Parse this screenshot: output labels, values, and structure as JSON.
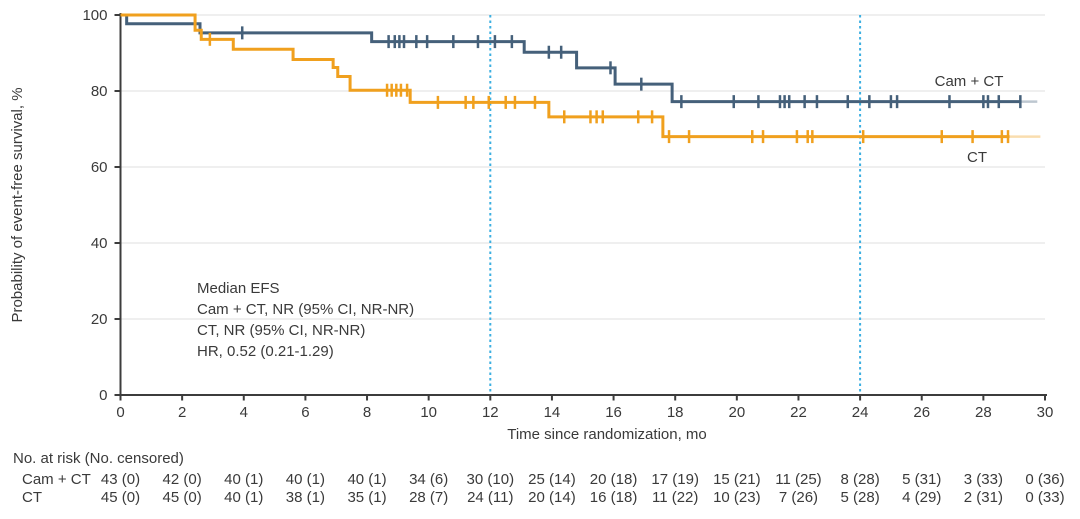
{
  "chart_data": {
    "type": "line",
    "subtype": "kaplan-meier-step",
    "title": "",
    "x_title": "Time since randomization, mo",
    "y_title": "Probability of event-free survival, %",
    "xlim": [
      0,
      30
    ],
    "ylim": [
      0,
      100
    ],
    "x_ticks": [
      0,
      2,
      4,
      6,
      8,
      10,
      12,
      14,
      16,
      18,
      20,
      22,
      24,
      26,
      28,
      30
    ],
    "y_ticks": [
      0,
      20,
      40,
      60,
      80,
      100
    ],
    "gridline_levels": [
      20,
      40,
      60,
      80,
      100
    ],
    "grid_on": true,
    "legend_position": "right-of-curves",
    "reference_lines": {
      "months": [
        12,
        24
      ],
      "color": "#3cafe1",
      "style": "dotted"
    },
    "colors": {
      "cam_ct": "#45607a",
      "ct": "#f0a01e",
      "axis": "#3c3c3c",
      "grid": "#eaeaea",
      "text": "#3a3a3a"
    },
    "series": [
      {
        "name": "Cam + CT",
        "color": "#45607a",
        "steps": [
          [
            0,
            100
          ],
          [
            0.2,
            97.7
          ],
          [
            2.58,
            95.3
          ],
          [
            8.15,
            93.0
          ],
          [
            13.1,
            90.2
          ],
          [
            14.8,
            86.1
          ],
          [
            16.05,
            81.8
          ],
          [
            17.9,
            77.2
          ]
        ],
        "end_month": 29.2,
        "fade_end_month": 29.75,
        "censors": [
          [
            3.95,
            95.3
          ],
          [
            8.7,
            93.0
          ],
          [
            8.9,
            93.0
          ],
          [
            9.05,
            93.0
          ],
          [
            9.2,
            93.0
          ],
          [
            9.6,
            93.0
          ],
          [
            9.95,
            93.0
          ],
          [
            10.8,
            93.0
          ],
          [
            11.6,
            93.0
          ],
          [
            12.15,
            93.0
          ],
          [
            12.7,
            93.0
          ],
          [
            13.9,
            90.2
          ],
          [
            14.3,
            90.2
          ],
          [
            15.9,
            86.1
          ],
          [
            16.9,
            81.8
          ],
          [
            18.2,
            77.2
          ],
          [
            19.9,
            77.2
          ],
          [
            20.7,
            77.2
          ],
          [
            21.4,
            77.2
          ],
          [
            21.55,
            77.2
          ],
          [
            21.7,
            77.2
          ],
          [
            22.2,
            77.2
          ],
          [
            22.6,
            77.2
          ],
          [
            23.6,
            77.2
          ],
          [
            24.3,
            77.2
          ],
          [
            25.0,
            77.2
          ],
          [
            25.2,
            77.2
          ],
          [
            26.9,
            77.2
          ],
          [
            28.0,
            77.2
          ],
          [
            28.15,
            77.2
          ],
          [
            28.5,
            77.2
          ],
          [
            29.2,
            77.2
          ]
        ],
        "label_anchor": {
          "x": 969,
          "y": 86
        }
      },
      {
        "name": "CT",
        "color": "#f0a01e",
        "steps": [
          [
            0,
            100
          ],
          [
            2.42,
            96.0
          ],
          [
            2.62,
            93.6
          ],
          [
            3.66,
            91.0
          ],
          [
            5.6,
            88.3
          ],
          [
            6.9,
            86.2
          ],
          [
            7.05,
            83.8
          ],
          [
            7.45,
            80.2
          ],
          [
            9.4,
            77.0
          ],
          [
            13.9,
            73.2
          ],
          [
            17.6,
            68.0
          ]
        ],
        "end_month": 28.85,
        "fade_end_month": 29.85,
        "censors": [
          [
            2.9,
            93.6
          ],
          [
            8.65,
            80.2
          ],
          [
            8.8,
            80.2
          ],
          [
            8.95,
            80.2
          ],
          [
            9.1,
            80.2
          ],
          [
            9.3,
            80.2
          ],
          [
            10.3,
            77.0
          ],
          [
            11.2,
            77.0
          ],
          [
            11.45,
            77.0
          ],
          [
            11.95,
            77.0
          ],
          [
            12.5,
            77.0
          ],
          [
            12.8,
            77.0
          ],
          [
            13.45,
            77.0
          ],
          [
            14.4,
            73.2
          ],
          [
            15.25,
            73.2
          ],
          [
            15.45,
            73.2
          ],
          [
            15.65,
            73.2
          ],
          [
            16.8,
            73.2
          ],
          [
            17.25,
            73.2
          ],
          [
            17.8,
            68.0
          ],
          [
            18.45,
            68.0
          ],
          [
            20.5,
            68.0
          ],
          [
            20.85,
            68.0
          ],
          [
            21.95,
            68.0
          ],
          [
            22.3,
            68.0
          ],
          [
            22.45,
            68.0
          ],
          [
            24.1,
            68.0
          ],
          [
            26.65,
            68.0
          ],
          [
            27.65,
            68.0
          ],
          [
            28.6,
            68.0
          ],
          [
            28.8,
            68.0
          ]
        ],
        "label_anchor": {
          "x": 977,
          "y": 162
        }
      }
    ],
    "annotation": {
      "lines": [
        "Median EFS",
        "Cam + CT, NR (95% CI, NR-NR)",
        "CT, NR (95% CI, NR-NR)",
        "HR, 0.52 (0.21-1.29)"
      ]
    }
  },
  "risk_table": {
    "header": "No. at risk (No. censored)",
    "times": [
      0,
      2,
      4,
      6,
      8,
      10,
      12,
      14,
      16,
      18,
      20,
      22,
      24,
      26,
      28,
      30
    ],
    "rows": [
      {
        "label": "Cam + CT",
        "values": [
          "43 (0)",
          "42 (0)",
          "40 (1)",
          "40 (1)",
          "40 (1)",
          "34 (6)",
          "30 (10)",
          "25 (14)",
          "20 (18)",
          "17 (19)",
          "15 (21)",
          "11 (25)",
          "8 (28)",
          "5 (31)",
          "3 (33)",
          "0 (36)"
        ]
      },
      {
        "label": "CT",
        "values": [
          "45 (0)",
          "45 (0)",
          "40 (1)",
          "38 (1)",
          "35 (1)",
          "28 (7)",
          "24 (11)",
          "20 (14)",
          "16 (18)",
          "11 (22)",
          "10 (23)",
          "7 (26)",
          "5 (28)",
          "4 (29)",
          "2 (31)",
          "0 (33)"
        ]
      }
    ]
  }
}
